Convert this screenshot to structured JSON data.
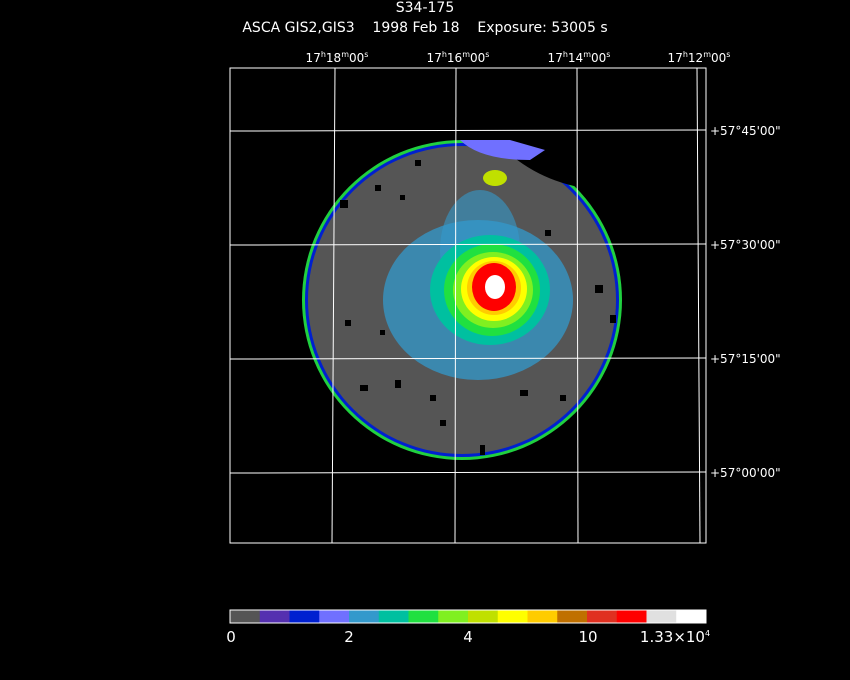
{
  "header": {
    "title": "S34-175",
    "subtitle": "ASCA GIS2,GIS3    1998 Feb 18    Exposure: 53005 s"
  },
  "ra_labels": [
    {
      "h": "17",
      "m": "18",
      "s": "00"
    },
    {
      "h": "17",
      "m": "16",
      "s": "00"
    },
    {
      "h": "17",
      "m": "14",
      "s": "00"
    },
    {
      "h": "17",
      "m": "12",
      "s": "00"
    }
  ],
  "dec_labels": [
    "+57°45'00\"",
    "+57°30'00\"",
    "+57°15'00\"",
    "+57°00'00\""
  ],
  "ra_units": {
    "h": "h",
    "m": "m",
    "s": "s"
  },
  "colorbar": {
    "colors": [
      "#555555",
      "#5530b0",
      "#0020d0",
      "#7070ff",
      "#3399cc",
      "#00c0a0",
      "#20e040",
      "#80f020",
      "#c0e000",
      "#ffff00",
      "#ffcc00",
      "#c07000",
      "#e03020",
      "#ff0000",
      "#e0e0e0",
      "#ffffff"
    ],
    "labels": [
      "0",
      "2",
      "4",
      "10",
      "1.33×10"
    ],
    "exp": "4"
  }
}
